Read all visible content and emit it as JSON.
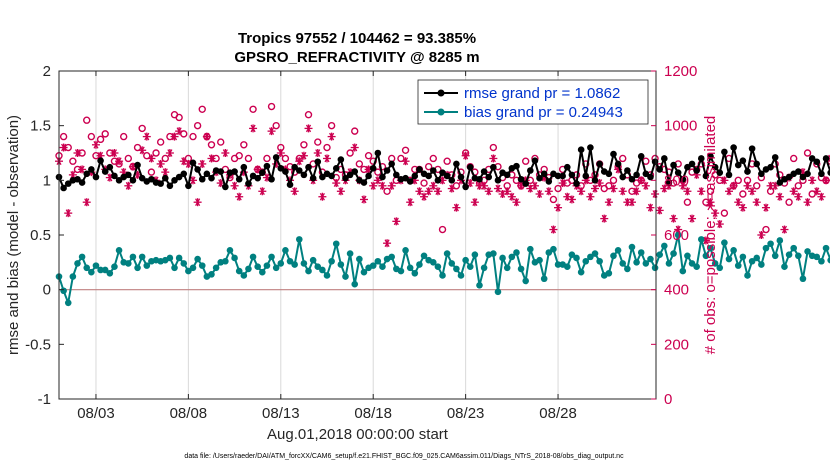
{
  "chart_data": {
    "type": "line",
    "title": "Tropics 97552 / 104462 = 93.385%",
    "subtitle": "GPSRO_REFRACTIVITY @ 8285 m",
    "xlabel": "Aug.01,2018 00:00:00 start",
    "ylabel_left": "rmse and bias (model - observation)",
    "ylabel_right": "# of obs: o=possible; ∗=assimilated",
    "xlim": [
      1.0,
      33.3
    ],
    "ylim_left": [
      -1,
      2
    ],
    "ylim_right": [
      0,
      1200
    ],
    "x_ticks": [
      {
        "x": 3,
        "label": "08/03"
      },
      {
        "x": 8,
        "label": "08/08"
      },
      {
        "x": 13,
        "label": "08/13"
      },
      {
        "x": 18,
        "label": "08/18"
      },
      {
        "x": 23,
        "label": "08/23"
      },
      {
        "x": 28,
        "label": "08/28"
      }
    ],
    "y_ticks_left": [
      -1,
      -0.5,
      0,
      0.5,
      1,
      1.5,
      2
    ],
    "y_tick_labels_left": [
      "-1",
      "-0.5",
      "0",
      "0.5",
      "1",
      "1.5",
      "2"
    ],
    "y_ticks_right": [
      0,
      200,
      400,
      600,
      800,
      1000,
      1200
    ],
    "y_tick_labels_right": [
      "0",
      "200",
      "400",
      "600",
      "800",
      "1000",
      "1200"
    ],
    "legend": {
      "position": "top-right",
      "entries": [
        {
          "label": "rmse grand pr = 1.0862",
          "color": "#000000"
        },
        {
          "label": "bias grand pr = 0.24943",
          "color": "#008080"
        }
      ],
      "text_color": "#0033cc"
    },
    "series": [
      {
        "name": "rmse",
        "axis": "left",
        "color": "#000000",
        "marker": "filled-circle",
        "x_start": 1.0,
        "x_step": 0.25,
        "values": [
          1.03,
          0.93,
          0.97,
          1.0,
          1.01,
          0.98,
          1.06,
          1.1,
          1.03,
          1.18,
          1.08,
          1.12,
          1.04,
          1.0,
          1.03,
          1.05,
          1.0,
          1.14,
          1.02,
          0.99,
          1.01,
          0.98,
          0.97,
          1.02,
          0.95,
          1.0,
          1.03,
          1.06,
          0.95,
          1.16,
          1.1,
          1.01,
          1.06,
          1.02,
          1.09,
          1.08,
          0.94,
          1.07,
          1.08,
          1.01,
          1.12,
          0.97,
          1.04,
          1.02,
          1.07,
          1.13,
          1.01,
          1.21,
          1.11,
          1.08,
          0.96,
          1.12,
          1.09,
          1.05,
          1.12,
          1.02,
          1.17,
          1.03,
          1.06,
          1.04,
          1.11,
          1.19,
          1.02,
          1.05,
          1.08,
          1.0,
          0.98,
          1.04,
          1.11,
          1.25,
          1.03,
          1.09,
          1.15,
          1.05,
          1.01,
          1.02,
          0.99,
          1.04,
          1.1,
          1.06,
          1.04,
          1.09,
          1.0,
          1.07,
          1.04,
          1.0,
          1.15,
          1.03,
          0.94,
          1.12,
          1.02,
          1.01,
          1.08,
          1.03,
          1.12,
          1.0,
          1.07,
          1.05,
          1.11,
          1.13,
          1.01,
          0.97,
          1.09,
          1.18,
          1.02,
          1.06,
          0.99,
          1.06,
          1.04,
          1.04,
          1.12,
          1.05,
          0.97,
          1.28,
          1.04,
          1.3,
          1.0,
          1.15,
          1.08,
          1.06,
          1.24,
          1.15,
          1.03,
          1.09,
          1.01,
          1.05,
          1.22,
          1.06,
          1.03,
          1.17,
          1.1,
          1.2,
          0.98,
          1.14,
          1.07,
          1.01,
          1.12,
          1.15,
          1.09,
          1.2,
          1.04,
          1.22,
          1.12,
          1.07,
          1.26,
          1.05,
          1.3,
          1.14,
          1.18,
          1.08,
          1.29,
          1.15,
          1.06,
          1.1,
          1.12,
          1.21,
          0.98,
          1.01,
          1.03,
          1.06,
          1.08,
          1.03,
          1.06,
          1.2,
          1.17,
          1.06,
          1.2,
          1.07,
          1.13,
          0.97,
          1.23
        ]
      },
      {
        "name": "bias",
        "axis": "left",
        "color": "#008080",
        "marker": "filled-circle",
        "x_start": 1.0,
        "x_step": 0.25,
        "values": [
          0.12,
          -0.01,
          -0.12,
          0.12,
          0.24,
          0.3,
          0.2,
          0.16,
          0.22,
          0.18,
          0.18,
          0.15,
          0.21,
          0.36,
          0.25,
          0.24,
          0.3,
          0.2,
          0.3,
          0.22,
          0.26,
          0.27,
          0.26,
          0.27,
          0.29,
          0.2,
          0.29,
          0.24,
          0.17,
          0.2,
          0.28,
          0.22,
          0.12,
          0.14,
          0.2,
          0.25,
          0.26,
          0.36,
          0.29,
          0.17,
          0.13,
          0.19,
          0.3,
          0.21,
          0.16,
          0.22,
          0.3,
          0.2,
          0.24,
          0.36,
          0.26,
          0.23,
          0.46,
          0.24,
          0.17,
          0.27,
          0.21,
          0.18,
          0.13,
          0.26,
          0.42,
          0.23,
          0.12,
          0.33,
          0.05,
          0.28,
          0.16,
          0.2,
          0.22,
          0.26,
          0.21,
          0.28,
          0.3,
          0.19,
          0.17,
          0.36,
          0.2,
          0.15,
          0.23,
          0.31,
          0.27,
          0.25,
          0.21,
          0.13,
          0.33,
          0.24,
          0.19,
          0.13,
          0.27,
          0.21,
          0.32,
          0.04,
          0.2,
          0.32,
          0.33,
          -0.02,
          0.29,
          0.2,
          0.3,
          0.34,
          0.19,
          0.08,
          0.37,
          0.25,
          0.27,
          0.1,
          0.34,
          0.37,
          0.23,
          0.23,
          0.21,
          0.32,
          0.29,
          0.16,
          0.26,
          0.3,
          0.33,
          0.26,
          0.13,
          0.15,
          0.31,
          0.36,
          0.24,
          0.19,
          0.39,
          0.25,
          0.34,
          0.24,
          0.28,
          0.2,
          0.32,
          0.4,
          0.24,
          0.33,
          0.5,
          0.17,
          0.31,
          0.24,
          0.21,
          0.46,
          0.31,
          0.38,
          0.24,
          0.2,
          0.43,
          0.28,
          0.36,
          0.22,
          0.3,
          0.13,
          0.26,
          0.29,
          0.23,
          0.38,
          0.42,
          0.31,
          0.45,
          0.21,
          0.32,
          0.38,
          0.31,
          0.1,
          0.35,
          0.31,
          0.3,
          0.26,
          0.38,
          0.27,
          0.17,
          0.21,
          0.34,
          0.37,
          0.5,
          0.43,
          0.31,
          0.17,
          0.38,
          0.23,
          0.17
        ]
      },
      {
        "name": "possible",
        "axis": "right",
        "color": "#cc0050",
        "marker": "open-circle",
        "x_start": 1.0,
        "x_step": 0.25,
        "values": [
          890,
          960,
          920,
          870,
          840,
          900,
          1020,
          960,
          890,
          950,
          970,
          900,
          870,
          860,
          960,
          880,
          850,
          920,
          990,
          890,
          830,
          900,
          940,
          880,
          960,
          1040,
          1030,
          970,
          880,
          960,
          1000,
          1060,
          960,
          930,
          880,
          940,
          840,
          810,
          880,
          890,
          930,
          880,
          1060,
          840,
          830,
          880,
          1070,
          1000,
          920,
          880,
          850,
          830,
          880,
          930,
          1040,
          860,
          940,
          830,
          920,
          1000,
          810,
          840,
          820,
          900,
          980,
          860,
          840,
          890,
          870,
          830,
          850,
          760,
          880,
          800,
          880,
          910,
          800,
          840,
          840,
          790,
          850,
          880,
          840,
          620,
          870,
          820,
          780,
          830,
          900,
          850,
          830,
          790,
          800,
          840,
          920,
          850,
          810,
          780,
          820,
          800,
          780,
          870,
          800,
          880,
          820,
          840,
          810,
          730,
          770,
          840,
          790,
          800,
          820,
          780,
          860,
          800,
          820,
          860,
          770,
          780,
          800,
          850,
          880,
          820,
          760,
          790,
          800,
          870,
          820,
          880,
          850,
          840,
          830,
          790,
          860,
          800,
          720,
          830,
          840,
          860,
          720,
          760,
          820,
          800,
          680,
          880,
          780,
          800,
          750,
          800,
          860,
          780,
          810,
          620,
          760,
          860,
          820,
          790,
          720,
          880,
          780,
          800,
          900,
          750,
          860,
          810,
          800,
          870,
          930,
          900,
          880,
          820,
          800,
          830,
          780,
          860,
          0
        ]
      },
      {
        "name": "assimilated",
        "axis": "right",
        "color": "#cc0050",
        "marker": "asterisk",
        "x_start": 1.0,
        "x_step": 0.25,
        "values": [
          870,
          920,
          680,
          820,
          900,
          840,
          720,
          830,
          930,
          890,
          840,
          810,
          900,
          870,
          830,
          780,
          850,
          820,
          910,
          960,
          880,
          800,
          860,
          830,
          900,
          960,
          980,
          870,
          860,
          800,
          720,
          860,
          960,
          880,
          830,
          790,
          900,
          820,
          780,
          740,
          830,
          780,
          990,
          840,
          760,
          810,
          980,
          860,
          900,
          840,
          800,
          760,
          870,
          890,
          990,
          800,
          900,
          740,
          880,
          960,
          790,
          760,
          800,
          830,
          920,
          800,
          730,
          840,
          780,
          800,
          780,
          570,
          780,
          650,
          800,
          870,
          720,
          800,
          760,
          740,
          760,
          780,
          760,
          800,
          820,
          770,
          700,
          800,
          890,
          790,
          720,
          780,
          780,
          760,
          880,
          770,
          750,
          760,
          740,
          720,
          780,
          800,
          770,
          780,
          750,
          810,
          760,
          620,
          700,
          790,
          740,
          730,
          780,
          760,
          800,
          740,
          770,
          790,
          660,
          720,
          770,
          840,
          760,
          720,
          720,
          760,
          800,
          780,
          700,
          750,
          690,
          770,
          780,
          660,
          620,
          780,
          760,
          660,
          820,
          760,
          580,
          720,
          680,
          640,
          800,
          760,
          780,
          720,
          700,
          780,
          760,
          720,
          600,
          700,
          780,
          780,
          740,
          620,
          810,
          760,
          740,
          830,
          720,
          800,
          760,
          740,
          800,
          880,
          860,
          840,
          790,
          760,
          780,
          700,
          820,
          0
        ]
      }
    ]
  },
  "footnote": "data file: /Users/raeder/DAI/ATM_forcXX/CAM6_setup/f.e21.FHIST_BGC.f09_025.CAM6assim.011/Diags_NTrS_2018-08/obs_diag_output.nc",
  "colors": {
    "axis": "#262626",
    "right_axis": "#cc0050",
    "grid": "#d9d9d9",
    "zero_line": "#c08080"
  }
}
